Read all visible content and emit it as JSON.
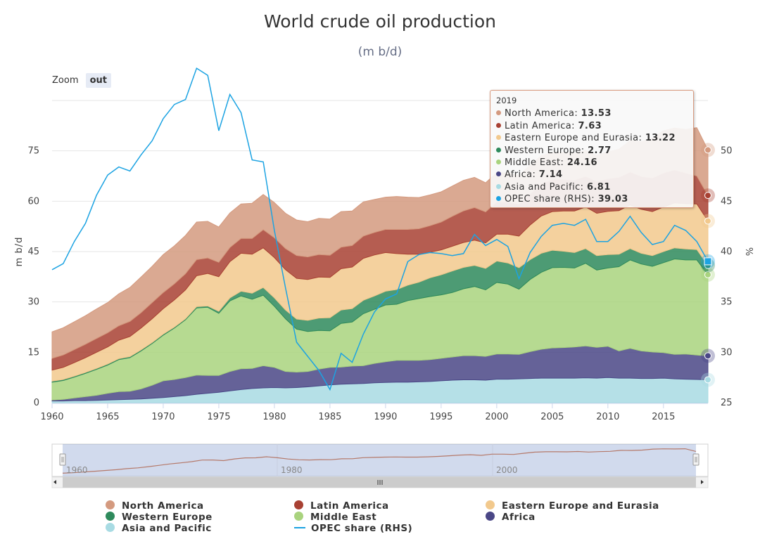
{
  "header": {
    "title": "World crude oil production",
    "subtitle": "(m b/d)"
  },
  "zoom": {
    "label": "Zoom",
    "button": "out"
  },
  "tooltip": {
    "year": "2019",
    "rows": [
      {
        "label": "North America:",
        "value": "13.53",
        "color": "#d49a7f"
      },
      {
        "label": "Latin America:",
        "value": "7.63",
        "color": "#a84133"
      },
      {
        "label": "Eastern Europe and Eurasia:",
        "value": "13.22",
        "color": "#f2c98d"
      },
      {
        "label": "Western Europe:",
        "value": "2.77",
        "color": "#2e8a5c"
      },
      {
        "label": "Middle East:",
        "value": "24.16",
        "color": "#a9d37e"
      },
      {
        "label": "Africa:",
        "value": "7.14",
        "color": "#4a4786"
      },
      {
        "label": "Asia and Pacific:",
        "value": "6.81",
        "color": "#a8dbe3"
      },
      {
        "label": "OPEC share (RHS):",
        "value": "39.03",
        "color": "#1ca3e2"
      }
    ]
  },
  "legend": [
    {
      "name": "North America",
      "color": "#d49a7f",
      "kind": "dot"
    },
    {
      "name": "Latin America",
      "color": "#a84133",
      "kind": "dot"
    },
    {
      "name": "Eastern Europe and Eurasia",
      "color": "#f2c98d",
      "kind": "dot"
    },
    {
      "name": "Western Europe",
      "color": "#2e8a5c",
      "kind": "dot"
    },
    {
      "name": "Middle East",
      "color": "#a9d37e",
      "kind": "dot"
    },
    {
      "name": "Africa",
      "color": "#4a4786",
      "kind": "dot"
    },
    {
      "name": "Asia and Pacific",
      "color": "#a8dbe3",
      "kind": "dot"
    },
    {
      "name": "OPEC share (RHS)",
      "color": "#1ca3e2",
      "kind": "line"
    }
  ],
  "chart_data": {
    "type": "area",
    "stacked": true,
    "title": "World crude oil production",
    "subtitle": "(m b/d)",
    "ylabel": "m b/d",
    "y2label": "%",
    "xlim": [
      1960,
      2019
    ],
    "ylim": [
      0,
      90
    ],
    "y2lim": [
      25,
      55
    ],
    "xticks": [
      1960,
      1965,
      1970,
      1975,
      1980,
      1985,
      1990,
      1995,
      2000,
      2005,
      2010,
      2015
    ],
    "yticks": [
      0,
      15,
      30,
      45,
      60,
      75
    ],
    "y2ticks": [
      25,
      30,
      35,
      40,
      45,
      50
    ],
    "navigator_ticks": [
      "1960",
      "1980",
      "2000"
    ],
    "grid": true,
    "legend_position": "bottom",
    "x": [
      1960,
      1961,
      1962,
      1963,
      1964,
      1965,
      1966,
      1967,
      1968,
      1969,
      1970,
      1971,
      1972,
      1973,
      1974,
      1975,
      1976,
      1977,
      1978,
      1979,
      1980,
      1981,
      1982,
      1983,
      1984,
      1985,
      1986,
      1987,
      1988,
      1989,
      1990,
      1991,
      1992,
      1993,
      1994,
      1995,
      1996,
      1997,
      1998,
      1999,
      2000,
      2001,
      2002,
      2003,
      2004,
      2005,
      2006,
      2007,
      2008,
      2009,
      2010,
      2011,
      2012,
      2013,
      2014,
      2015,
      2016,
      2017,
      2018,
      2019
    ],
    "series": [
      {
        "name": "Asia and Pacific",
        "color": "#a8dbe3",
        "values": [
          0.5,
          0.5,
          0.6,
          0.6,
          0.7,
          0.8,
          0.9,
          1.0,
          1.1,
          1.3,
          1.5,
          1.8,
          2.1,
          2.5,
          2.8,
          3.1,
          3.5,
          3.9,
          4.2,
          4.4,
          4.5,
          4.4,
          4.5,
          4.7,
          5.0,
          5.3,
          5.5,
          5.6,
          5.7,
          5.9,
          6.0,
          6.1,
          6.1,
          6.2,
          6.3,
          6.5,
          6.7,
          6.8,
          6.8,
          6.7,
          7.0,
          7.0,
          7.1,
          7.2,
          7.3,
          7.3,
          7.3,
          7.3,
          7.4,
          7.3,
          7.5,
          7.3,
          7.3,
          7.2,
          7.2,
          7.3,
          7.1,
          7.0,
          6.9,
          6.81
        ]
      },
      {
        "name": "Africa",
        "color": "#4a4786",
        "values": [
          0.3,
          0.5,
          0.8,
          1.2,
          1.5,
          2.0,
          2.4,
          2.4,
          3.0,
          3.9,
          5.0,
          5.1,
          5.4,
          5.7,
          5.3,
          5.0,
          5.8,
          6.2,
          6.0,
          6.6,
          6.0,
          4.9,
          4.6,
          4.6,
          5.0,
          5.2,
          5.1,
          5.3,
          5.3,
          5.8,
          6.2,
          6.5,
          6.5,
          6.4,
          6.5,
          6.7,
          6.9,
          7.2,
          7.2,
          7.1,
          7.5,
          7.5,
          7.3,
          8.0,
          8.6,
          9.0,
          9.1,
          9.3,
          9.5,
          9.2,
          9.3,
          8.1,
          8.9,
          8.2,
          7.9,
          7.6,
          7.3,
          7.5,
          7.3,
          7.14
        ]
      },
      {
        "name": "Middle East",
        "color": "#a9d37e",
        "values": [
          5.3,
          5.6,
          6.2,
          6.9,
          7.7,
          8.4,
          9.5,
          10.0,
          11.3,
          12.4,
          13.6,
          15.3,
          17.2,
          20.0,
          20.3,
          18.5,
          21.0,
          21.7,
          20.6,
          21.0,
          18.2,
          15.7,
          12.8,
          11.9,
          11.5,
          10.9,
          13.0,
          13.1,
          15.5,
          16.1,
          16.9,
          16.7,
          17.8,
          18.4,
          18.8,
          18.9,
          19.2,
          19.9,
          20.6,
          19.8,
          21.3,
          20.8,
          19.4,
          21.5,
          22.9,
          23.9,
          23.9,
          23.5,
          24.6,
          23.0,
          23.3,
          25.1,
          26.3,
          25.9,
          25.5,
          26.8,
          28.4,
          28.0,
          28.3,
          24.16
        ]
      },
      {
        "name": "Western Europe",
        "color": "#2e8a5c",
        "values": [
          0.3,
          0.3,
          0.3,
          0.3,
          0.3,
          0.3,
          0.3,
          0.3,
          0.3,
          0.3,
          0.3,
          0.3,
          0.3,
          0.4,
          0.4,
          0.6,
          0.9,
          1.4,
          1.8,
          2.3,
          2.5,
          2.6,
          3.0,
          3.3,
          3.7,
          3.9,
          4.0,
          4.0,
          4.0,
          4.0,
          4.1,
          4.4,
          4.6,
          4.9,
          5.6,
          6.0,
          6.4,
          6.4,
          6.3,
          6.4,
          6.4,
          6.3,
          6.4,
          5.9,
          5.7,
          5.2,
          4.8,
          4.6,
          4.4,
          4.3,
          4.0,
          3.7,
          3.4,
          3.2,
          3.2,
          3.3,
          3.3,
          3.3,
          3.1,
          2.77
        ]
      },
      {
        "name": "Eastern Europe and Eurasia",
        "color": "#f2c98d",
        "values": [
          3.3,
          3.6,
          4.0,
          4.4,
          4.8,
          5.1,
          5.5,
          6.0,
          6.5,
          7.1,
          7.6,
          8.1,
          8.6,
          9.2,
          9.7,
          10.3,
          10.8,
          11.3,
          11.6,
          11.8,
          12.0,
          12.0,
          12.1,
          12.2,
          12.2,
          12.0,
          12.3,
          12.4,
          12.5,
          12.2,
          11.5,
          10.7,
          9.2,
          8.3,
          7.6,
          7.4,
          7.4,
          7.4,
          7.5,
          7.6,
          8.0,
          8.6,
          9.4,
          10.3,
          11.1,
          11.5,
          12.0,
          12.4,
          12.4,
          12.6,
          12.9,
          13.0,
          13.0,
          13.1,
          13.1,
          13.3,
          13.4,
          13.5,
          13.6,
          13.22
        ]
      },
      {
        "name": "Latin America",
        "color": "#a84133",
        "values": [
          3.5,
          3.7,
          3.9,
          4.0,
          4.1,
          4.2,
          4.3,
          4.5,
          4.6,
          4.8,
          4.8,
          4.8,
          4.8,
          4.8,
          4.6,
          4.3,
          4.2,
          4.4,
          4.7,
          5.4,
          5.9,
          6.3,
          6.8,
          6.7,
          6.7,
          6.6,
          6.4,
          6.4,
          6.6,
          6.7,
          6.9,
          7.2,
          7.4,
          7.6,
          7.9,
          8.3,
          8.9,
          9.4,
          9.7,
          9.2,
          9.6,
          9.6,
          9.5,
          9.3,
          9.6,
          9.6,
          9.4,
          9.2,
          9.1,
          9.5,
          9.7,
          9.9,
          9.8,
          9.8,
          10.0,
          10.1,
          9.8,
          9.1,
          8.3,
          7.63
        ]
      },
      {
        "name": "North America",
        "color": "#d49a7f",
        "values": [
          7.9,
          8.1,
          8.3,
          8.5,
          8.8,
          9.0,
          9.5,
          10.1,
          10.6,
          10.8,
          11.3,
          11.3,
          11.4,
          11.2,
          10.9,
          10.5,
          10.3,
          10.3,
          10.5,
          10.5,
          10.5,
          10.5,
          10.6,
          10.5,
          10.8,
          10.8,
          10.6,
          10.3,
          10.2,
          9.8,
          9.6,
          9.8,
          9.6,
          9.3,
          9.2,
          9.0,
          9.0,
          9.1,
          9.0,
          8.7,
          8.7,
          8.6,
          8.6,
          8.5,
          8.4,
          8.0,
          8.0,
          8.0,
          7.7,
          7.8,
          8.0,
          8.4,
          9.3,
          10.3,
          11.8,
          12.6,
          12.5,
          13.0,
          14.4,
          13.53
        ]
      },
      {
        "name": "OPEC share (RHS)",
        "color": "#1ca3e2",
        "axis": "right",
        "values": [
          38.2,
          38.8,
          41.0,
          42.8,
          45.6,
          47.6,
          48.4,
          48.0,
          49.6,
          51.0,
          53.2,
          54.6,
          55.1,
          58.2,
          57.5,
          52.0,
          55.6,
          53.8,
          49.1,
          48.9,
          42.1,
          36.4,
          31.0,
          29.6,
          28.2,
          26.3,
          29.9,
          29.0,
          31.8,
          34.0,
          35.3,
          35.8,
          39.0,
          39.7,
          39.9,
          39.8,
          39.6,
          39.8,
          41.7,
          40.6,
          41.2,
          40.5,
          37.3,
          39.9,
          41.5,
          42.6,
          42.8,
          42.6,
          43.2,
          41.0,
          41.0,
          42.0,
          43.5,
          41.9,
          40.7,
          41.0,
          42.6,
          42.1,
          41.0,
          39.03
        ]
      }
    ]
  }
}
